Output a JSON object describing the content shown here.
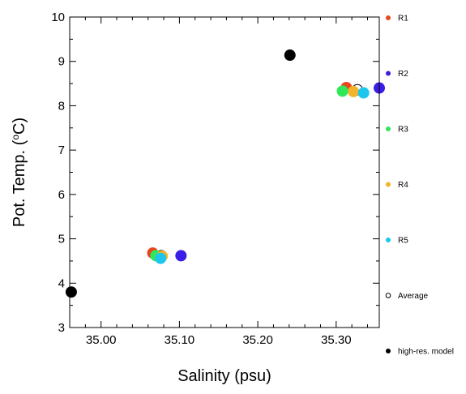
{
  "chart_data": {
    "type": "scatter",
    "xlabel": "Salinity (psu)",
    "ylabel": "Pot. Temp. (°C)",
    "xlim": [
      34.96,
      35.355
    ],
    "ylim": [
      3,
      10
    ],
    "xticks": [
      35.0,
      35.1,
      35.2,
      35.3
    ],
    "xtick_labels": [
      "35.00",
      "35.10",
      "35.20",
      "35.30"
    ],
    "yticks": [
      3,
      4,
      5,
      6,
      7,
      8,
      9,
      10
    ],
    "ytick_labels": [
      "3",
      "4",
      "5",
      "6",
      "7",
      "8",
      "9",
      "10"
    ],
    "grid": false,
    "legend_position": "right",
    "series": [
      {
        "name": "R1",
        "color": "#e8471e",
        "marker": "filled-circle",
        "points": [
          {
            "x": 35.066,
            "y": 4.68
          },
          {
            "x": 35.313,
            "y": 8.41
          }
        ]
      },
      {
        "name": "R2",
        "color": "#3a1ee6",
        "marker": "filled-circle",
        "points": [
          {
            "x": 35.102,
            "y": 4.62
          },
          {
            "x": 35.355,
            "y": 8.4
          }
        ]
      },
      {
        "name": "R3",
        "color": "#2ee85a",
        "marker": "filled-circle",
        "points": [
          {
            "x": 35.07,
            "y": 4.62
          },
          {
            "x": 35.308,
            "y": 8.33
          }
        ]
      },
      {
        "name": "R4",
        "color": "#f2b42a",
        "marker": "filled-circle",
        "points": [
          {
            "x": 35.078,
            "y": 4.61
          },
          {
            "x": 35.322,
            "y": 8.32
          }
        ]
      },
      {
        "name": "R5",
        "color": "#1ec6ee",
        "marker": "filled-circle",
        "points": [
          {
            "x": 35.076,
            "y": 4.56
          },
          {
            "x": 35.335,
            "y": 8.29
          }
        ]
      },
      {
        "name": "Average",
        "color": "#000000",
        "marker": "open-circle",
        "points": [
          {
            "x": 35.077,
            "y": 4.62
          },
          {
            "x": 35.327,
            "y": 8.36
          }
        ]
      },
      {
        "name": "high-res. model",
        "color": "#000000",
        "marker": "filled-circle",
        "points": [
          {
            "x": 34.962,
            "y": 3.8
          },
          {
            "x": 35.241,
            "y": 9.14
          }
        ]
      }
    ],
    "draw_order": [
      [
        5,
        0
      ],
      [
        5,
        1
      ],
      [
        0,
        0
      ],
      [
        2,
        0
      ],
      [
        3,
        0
      ],
      [
        4,
        0
      ],
      [
        1,
        0
      ],
      [
        0,
        1
      ],
      [
        3,
        1
      ],
      [
        2,
        1
      ],
      [
        4,
        1
      ],
      [
        1,
        1
      ],
      [
        6,
        0
      ],
      [
        6,
        1
      ]
    ]
  }
}
